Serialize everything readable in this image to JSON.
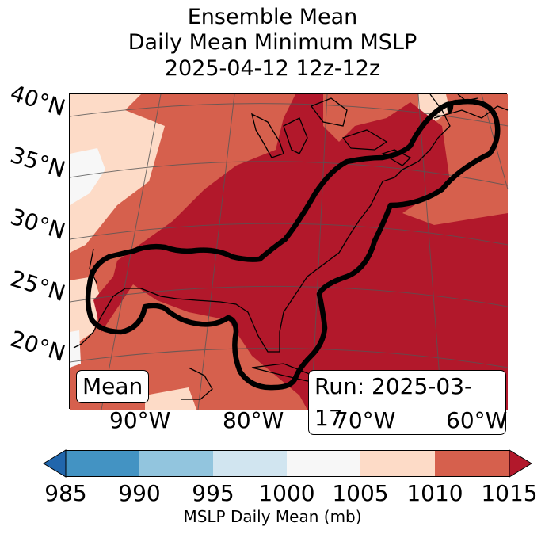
{
  "title": {
    "line1": "Ensemble Mean",
    "line2": "Daily Mean Minimum MSLP",
    "line3": "2025-04-12 12z-12z"
  },
  "lat_labels": [
    "40°N",
    "35°N",
    "30°N",
    "25°N",
    "20°N"
  ],
  "lon_labels": [
    "90°W",
    "80°W",
    "70°W",
    "60°W"
  ],
  "badges": {
    "left": "Mean",
    "right": "Run: 2025-03-17"
  },
  "colorbar": {
    "ticks": [
      "985",
      "990",
      "995",
      "1000",
      "1005",
      "1010",
      "1015"
    ],
    "label": "MSLP Daily Mean (mb)",
    "colors": [
      "#2166ac",
      "#4393c3",
      "#92c5de",
      "#d1e5f0",
      "#f7f7f7",
      "#fddbc7",
      "#d6604d",
      "#b2182b"
    ]
  }
}
